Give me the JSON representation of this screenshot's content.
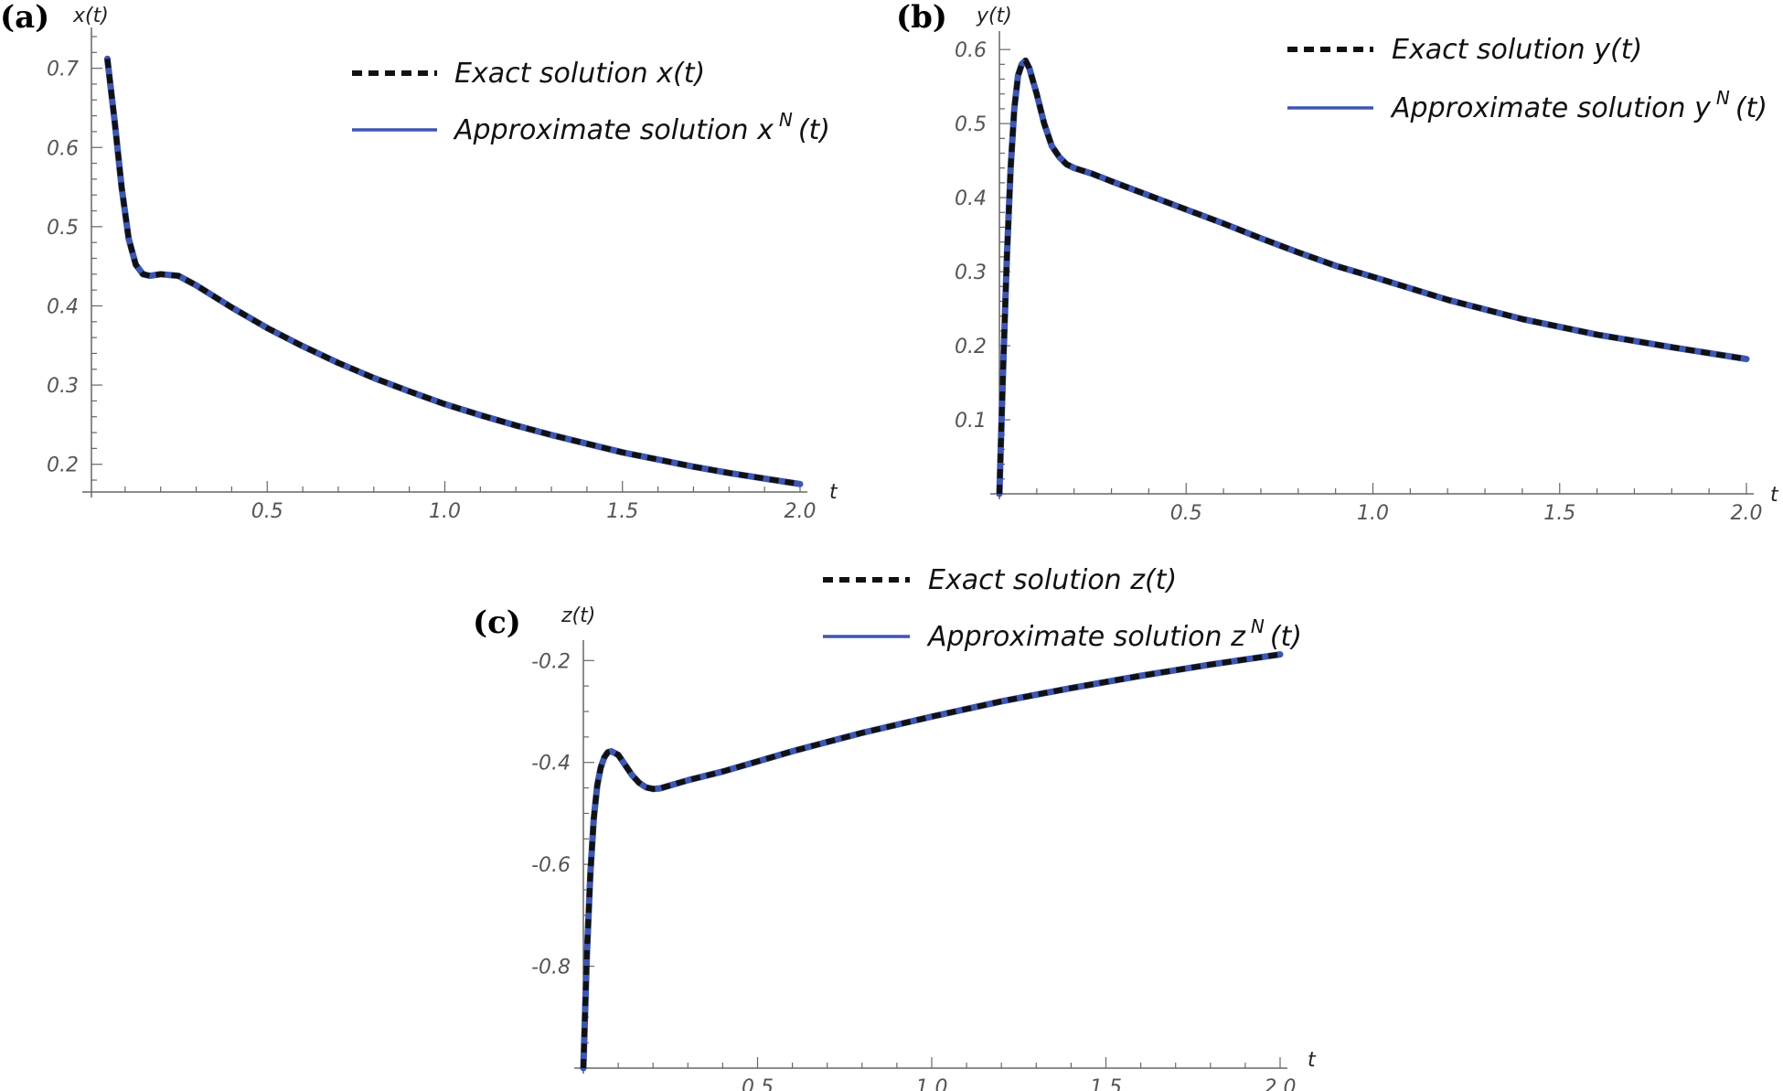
{
  "colors": {
    "exact": "#111111",
    "approx": "#3d56b2",
    "axis": "#666666",
    "tick_text": "#555555"
  },
  "chart_data": [
    {
      "type": "line",
      "panel_label": "(a)",
      "ylabel": "x(t)",
      "xlabel": "t",
      "xlim": [
        0,
        2.0
      ],
      "ylim": [
        0.165,
        0.74
      ],
      "xticks": [
        0.5,
        1.0,
        1.5,
        2.0
      ],
      "xtick_labels": [
        "0.5",
        "1.0",
        "1.5",
        "2.0"
      ],
      "yticks": [
        0.2,
        0.3,
        0.4,
        0.5,
        0.6,
        0.7
      ],
      "ytick_labels": [
        "0.2",
        "0.3",
        "0.4",
        "0.5",
        "0.6",
        "0.7"
      ],
      "legend": {
        "exact": {
          "prefix": "Exact solution ",
          "var": "x(t)"
        },
        "approx": {
          "prefix": "Approximate solution ",
          "base": "x",
          "sup": "N",
          "suffix": "(t)"
        }
      },
      "series": [
        {
          "name": "Exact solution x(t)",
          "style": "dashed",
          "x": [
            0.05,
            0.07,
            0.09,
            0.11,
            0.13,
            0.15,
            0.17,
            0.2,
            0.25,
            0.3,
            0.35,
            0.4,
            0.5,
            0.6,
            0.7,
            0.8,
            0.9,
            1.0,
            1.1,
            1.2,
            1.3,
            1.4,
            1.5,
            1.6,
            1.7,
            1.8,
            1.9,
            2.0
          ],
          "y": [
            0.712,
            0.635,
            0.55,
            0.485,
            0.452,
            0.44,
            0.438,
            0.44,
            0.438,
            0.426,
            0.412,
            0.398,
            0.372,
            0.349,
            0.328,
            0.309,
            0.292,
            0.276,
            0.262,
            0.249,
            0.237,
            0.226,
            0.215,
            0.206,
            0.197,
            0.189,
            0.182,
            0.175
          ]
        },
        {
          "name": "Approximate solution x^N(t)",
          "style": "solid",
          "x": [
            0.05,
            0.07,
            0.09,
            0.11,
            0.13,
            0.15,
            0.17,
            0.2,
            0.25,
            0.3,
            0.35,
            0.4,
            0.5,
            0.6,
            0.7,
            0.8,
            0.9,
            1.0,
            1.1,
            1.2,
            1.3,
            1.4,
            1.5,
            1.6,
            1.7,
            1.8,
            1.9,
            2.0
          ],
          "y": [
            0.712,
            0.635,
            0.55,
            0.485,
            0.452,
            0.44,
            0.438,
            0.44,
            0.438,
            0.426,
            0.412,
            0.398,
            0.372,
            0.349,
            0.328,
            0.309,
            0.292,
            0.276,
            0.262,
            0.249,
            0.237,
            0.226,
            0.215,
            0.206,
            0.197,
            0.189,
            0.182,
            0.175
          ]
        }
      ]
    },
    {
      "type": "line",
      "panel_label": "(b)",
      "ylabel": "y(t)",
      "xlabel": "t",
      "xlim": [
        0,
        2.0
      ],
      "ylim": [
        0,
        0.615
      ],
      "xticks": [
        0.5,
        1.0,
        1.5,
        2.0
      ],
      "xtick_labels": [
        "0.5",
        "1.0",
        "1.5",
        "2.0"
      ],
      "yticks": [
        0.1,
        0.2,
        0.3,
        0.4,
        0.5,
        0.6
      ],
      "ytick_labels": [
        "0.1",
        "0.2",
        "0.3",
        "0.4",
        "0.5",
        "0.6"
      ],
      "legend": {
        "exact": {
          "prefix": "Exact solution ",
          "var": "y(t)"
        },
        "approx": {
          "prefix": "Approximate solution ",
          "base": "y",
          "sup": "N",
          "suffix": "(t)"
        }
      },
      "series": [
        {
          "name": "Exact solution y(t)",
          "style": "dashed",
          "x": [
            0.0,
            0.01,
            0.02,
            0.03,
            0.04,
            0.05,
            0.06,
            0.07,
            0.08,
            0.1,
            0.12,
            0.14,
            0.16,
            0.18,
            0.2,
            0.25,
            0.3,
            0.4,
            0.5,
            0.6,
            0.7,
            0.8,
            0.9,
            1.0,
            1.2,
            1.4,
            1.6,
            1.8,
            2.0
          ],
          "y": [
            0.0,
            0.17,
            0.32,
            0.44,
            0.52,
            0.565,
            0.58,
            0.585,
            0.575,
            0.54,
            0.5,
            0.47,
            0.455,
            0.445,
            0.44,
            0.432,
            0.422,
            0.403,
            0.384,
            0.365,
            0.345,
            0.326,
            0.308,
            0.293,
            0.262,
            0.236,
            0.215,
            0.198,
            0.182
          ]
        },
        {
          "name": "Approximate solution y^N(t)",
          "style": "solid",
          "x": [
            0.0,
            0.01,
            0.02,
            0.03,
            0.04,
            0.05,
            0.06,
            0.07,
            0.08,
            0.1,
            0.12,
            0.14,
            0.16,
            0.18,
            0.2,
            0.25,
            0.3,
            0.4,
            0.5,
            0.6,
            0.7,
            0.8,
            0.9,
            1.0,
            1.2,
            1.4,
            1.6,
            1.8,
            2.0
          ],
          "y": [
            0.0,
            0.17,
            0.32,
            0.44,
            0.52,
            0.565,
            0.58,
            0.585,
            0.575,
            0.54,
            0.5,
            0.47,
            0.455,
            0.445,
            0.44,
            0.432,
            0.422,
            0.403,
            0.384,
            0.365,
            0.345,
            0.326,
            0.308,
            0.293,
            0.262,
            0.236,
            0.215,
            0.198,
            0.182
          ]
        }
      ]
    },
    {
      "type": "line",
      "panel_label": "(c)",
      "ylabel": "z(t)",
      "xlabel": "t",
      "xlim": [
        0,
        2.0
      ],
      "ylim": [
        -1.0,
        -0.16
      ],
      "xticks": [
        0.5,
        1.0,
        1.5,
        2.0
      ],
      "xtick_labels": [
        "0.5",
        "1.0",
        "1.5",
        "2.0"
      ],
      "yticks": [
        -0.8,
        -0.6,
        -0.4,
        -0.2
      ],
      "ytick_labels": [
        "-0.8",
        "-0.6",
        "-0.4",
        "-0.2"
      ],
      "legend": {
        "exact": {
          "prefix": "Exact solution ",
          "var": "z(t)"
        },
        "approx": {
          "prefix": "Approximate solution ",
          "base": "z",
          "sup": "N",
          "suffix": "(t)"
        }
      },
      "series": [
        {
          "name": "Exact solution z(t)",
          "style": "dashed",
          "x": [
            0.0,
            0.01,
            0.02,
            0.03,
            0.04,
            0.05,
            0.06,
            0.07,
            0.08,
            0.1,
            0.12,
            0.14,
            0.16,
            0.18,
            0.2,
            0.22,
            0.25,
            0.3,
            0.4,
            0.5,
            0.6,
            0.7,
            0.8,
            0.9,
            1.0,
            1.2,
            1.4,
            1.6,
            1.8,
            2.0
          ],
          "y": [
            -1.0,
            -0.78,
            -0.62,
            -0.51,
            -0.445,
            -0.41,
            -0.39,
            -0.38,
            -0.378,
            -0.385,
            -0.405,
            -0.425,
            -0.44,
            -0.449,
            -0.452,
            -0.451,
            -0.445,
            -0.435,
            -0.418,
            -0.398,
            -0.378,
            -0.36,
            -0.342,
            -0.326,
            -0.31,
            -0.28,
            -0.254,
            -0.23,
            -0.208,
            -0.188
          ]
        },
        {
          "name": "Approximate solution z^N(t)",
          "style": "solid",
          "x": [
            0.0,
            0.01,
            0.02,
            0.03,
            0.04,
            0.05,
            0.06,
            0.07,
            0.08,
            0.1,
            0.12,
            0.14,
            0.16,
            0.18,
            0.2,
            0.22,
            0.25,
            0.3,
            0.4,
            0.5,
            0.6,
            0.7,
            0.8,
            0.9,
            1.0,
            1.2,
            1.4,
            1.6,
            1.8,
            2.0
          ],
          "y": [
            -1.0,
            -0.78,
            -0.62,
            -0.51,
            -0.445,
            -0.41,
            -0.39,
            -0.38,
            -0.378,
            -0.385,
            -0.405,
            -0.425,
            -0.44,
            -0.449,
            -0.452,
            -0.451,
            -0.445,
            -0.435,
            -0.418,
            -0.398,
            -0.378,
            -0.36,
            -0.342,
            -0.326,
            -0.31,
            -0.28,
            -0.254,
            -0.23,
            -0.208,
            -0.188
          ]
        }
      ]
    }
  ]
}
